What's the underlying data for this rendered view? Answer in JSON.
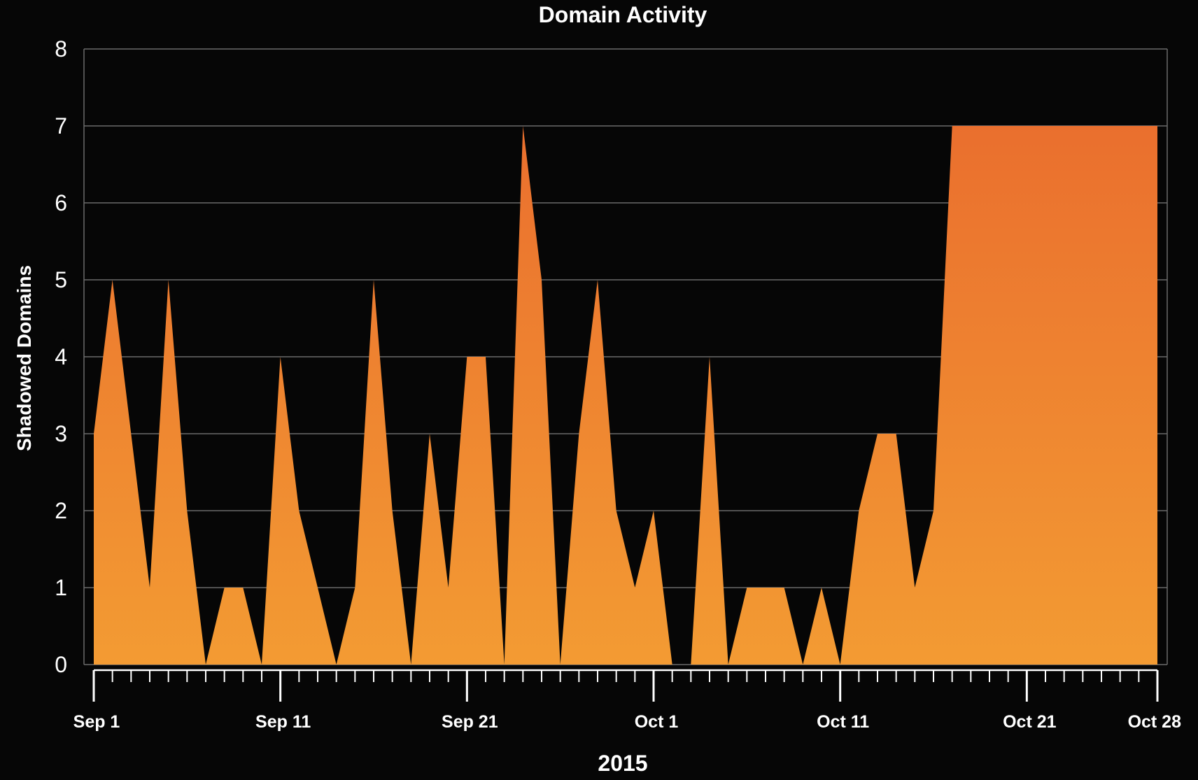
{
  "chart_data": {
    "type": "area",
    "title": "Domain Activity",
    "xlabel": "2015",
    "ylabel": "Shadowed Domains",
    "ylim": [
      0,
      8
    ],
    "yticks": [
      0,
      1,
      2,
      3,
      4,
      5,
      6,
      7,
      8
    ],
    "xlim": [
      "2015-09-01",
      "2015-10-28"
    ],
    "xticks": [
      {
        "date": "2015-09-01",
        "label": "Sep 1"
      },
      {
        "date": "2015-09-11",
        "label": "Sep 11"
      },
      {
        "date": "2015-09-21",
        "label": "Sep 21"
      },
      {
        "date": "2015-10-01",
        "label": "Oct 1"
      },
      {
        "date": "2015-10-11",
        "label": "Oct 11"
      },
      {
        "date": "2015-10-21",
        "label": "Oct 21"
      },
      {
        "date": "2015-10-28",
        "label": "Oct 28"
      }
    ],
    "grid": true,
    "colors": {
      "top": "#ea6f2e",
      "bottom": "#f39b33",
      "background": "#060606",
      "grid": "#6a6a6a"
    },
    "series": [
      {
        "x": [
          "2015-09-01",
          "2015-09-02",
          "2015-09-03",
          "2015-09-04",
          "2015-09-05",
          "2015-09-06",
          "2015-09-07",
          "2015-09-08",
          "2015-09-09",
          "2015-09-10",
          "2015-09-11",
          "2015-09-12",
          "2015-09-13",
          "2015-09-14",
          "2015-09-15",
          "2015-09-16",
          "2015-09-17",
          "2015-09-18",
          "2015-09-19",
          "2015-09-20",
          "2015-09-21",
          "2015-09-22",
          "2015-09-23",
          "2015-09-24",
          "2015-09-25",
          "2015-09-26",
          "2015-09-27",
          "2015-09-28",
          "2015-09-29",
          "2015-09-30",
          "2015-10-01",
          "2015-10-02",
          "2015-10-03",
          "2015-10-04",
          "2015-10-05",
          "2015-10-06",
          "2015-10-07",
          "2015-10-08",
          "2015-10-09",
          "2015-10-10",
          "2015-10-11",
          "2015-10-12",
          "2015-10-13",
          "2015-10-14",
          "2015-10-15",
          "2015-10-16",
          "2015-10-17",
          "2015-10-18",
          "2015-10-19",
          "2015-10-20",
          "2015-10-21",
          "2015-10-22",
          "2015-10-23",
          "2015-10-24",
          "2015-10-25",
          "2015-10-26",
          "2015-10-27",
          "2015-10-28"
        ],
        "y": [
          3,
          5,
          3,
          1,
          5,
          2,
          0,
          1,
          1,
          0,
          4,
          2,
          1,
          0,
          1,
          5,
          2,
          0,
          3,
          1,
          4,
          4,
          0,
          7,
          5,
          0,
          3,
          5,
          2,
          1,
          2,
          0,
          0,
          4,
          0,
          1,
          1,
          1,
          0,
          1,
          0,
          2,
          3,
          3,
          1,
          2,
          7,
          7,
          7,
          7,
          7,
          7,
          7,
          7,
          7,
          7,
          7,
          7
        ]
      }
    ]
  }
}
